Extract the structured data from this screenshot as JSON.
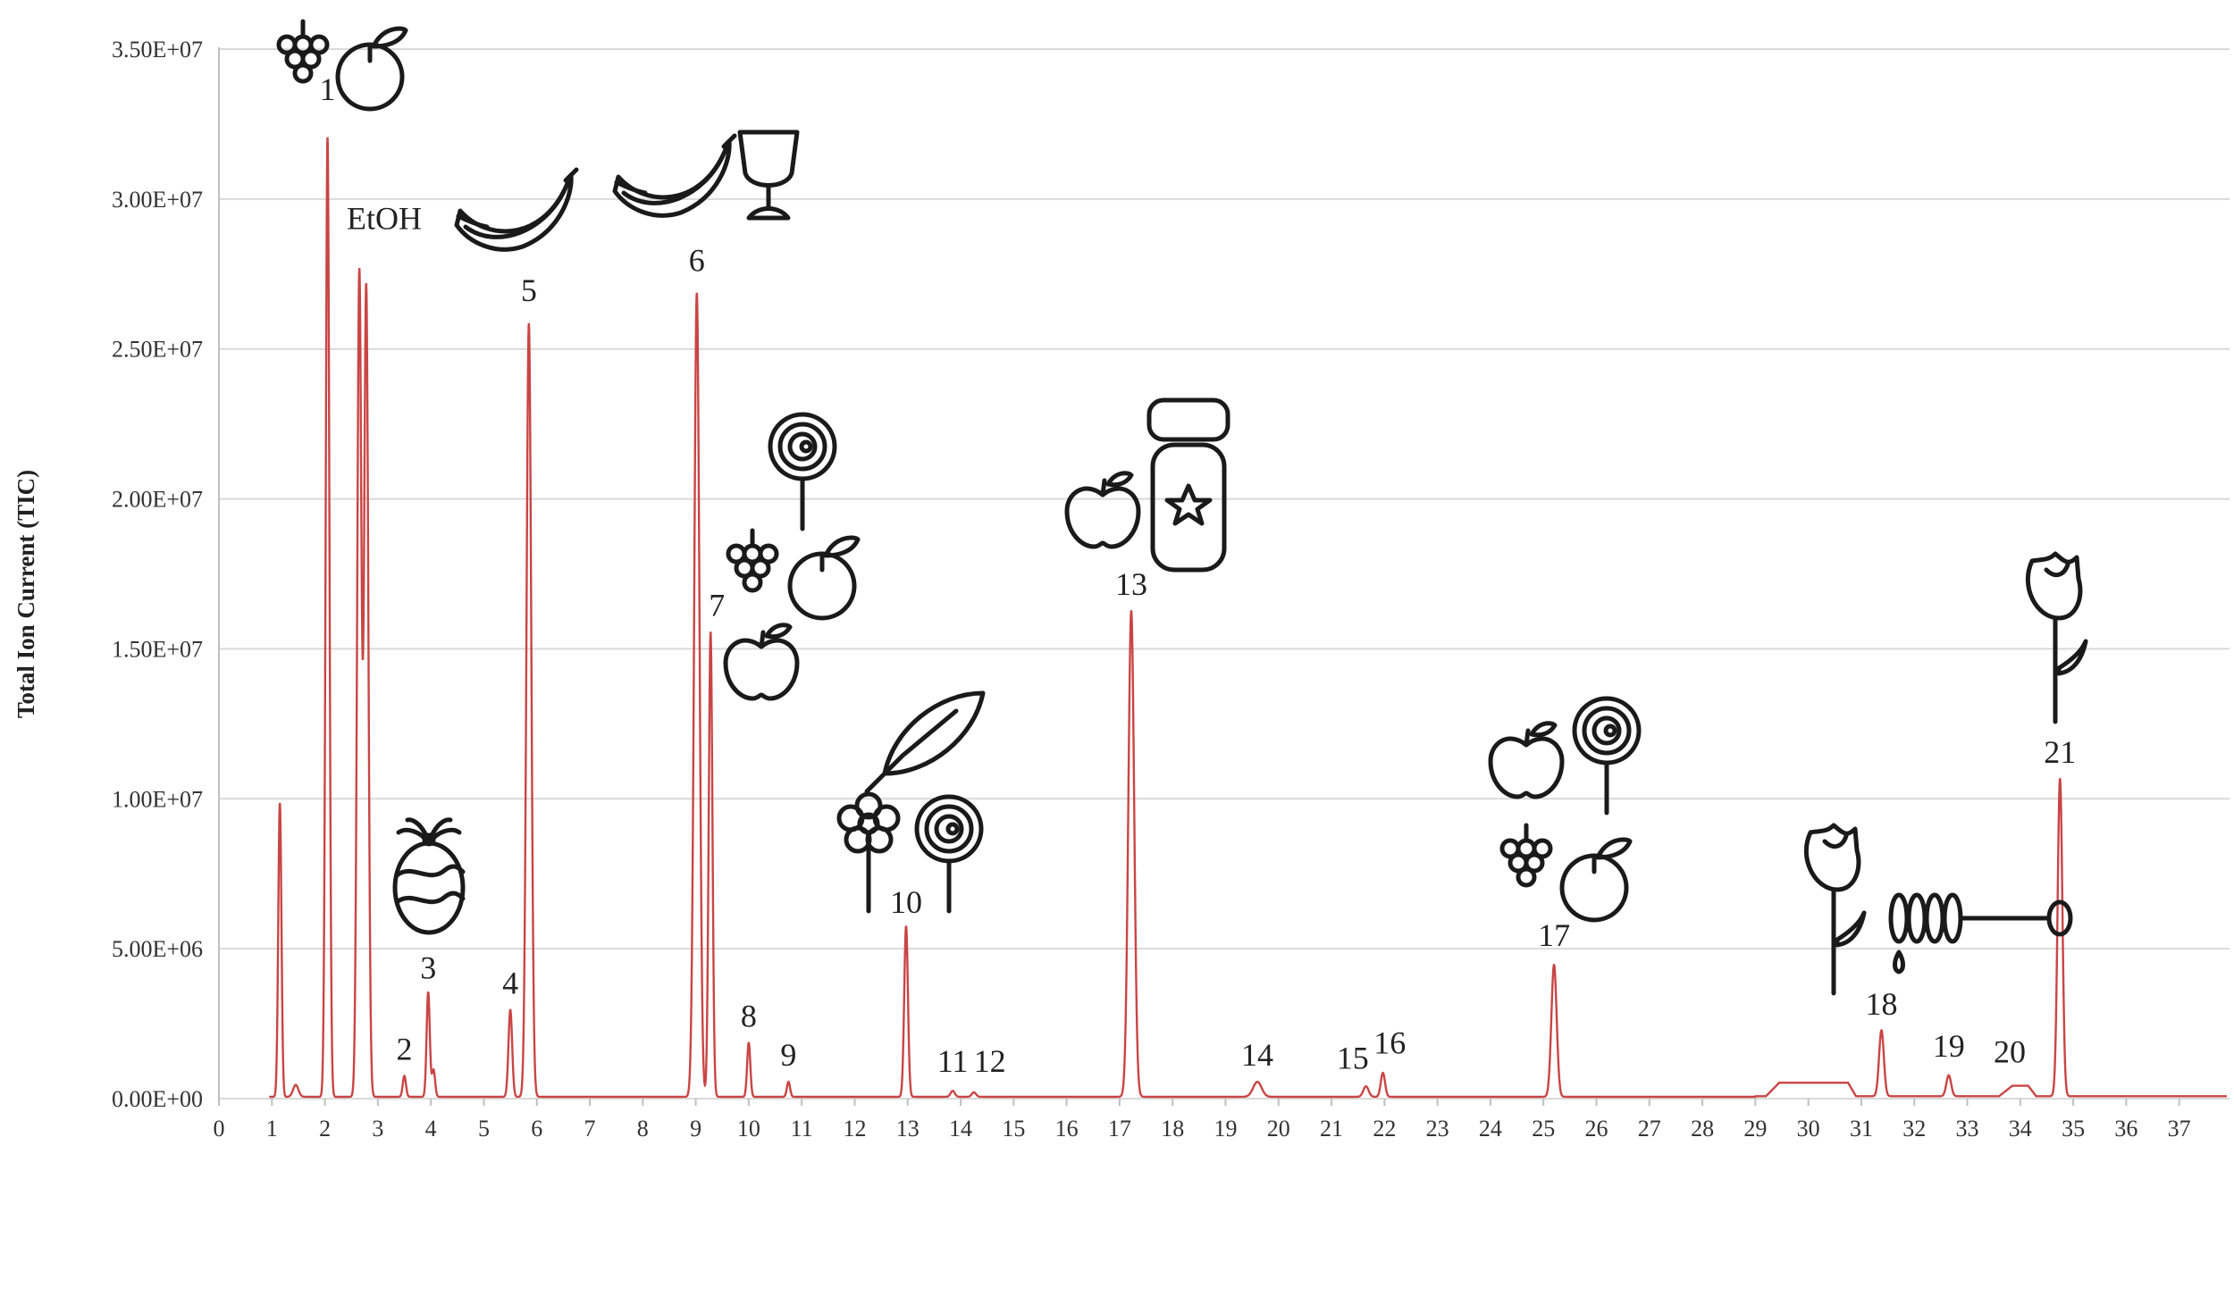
{
  "chart_data": {
    "type": "line",
    "title": "",
    "xlabel": "",
    "ylabel": "Total Ion Current (TIC)",
    "xlim": [
      0,
      38
    ],
    "ylim": [
      0,
      35000000
    ],
    "grid": true,
    "x_ticks": [
      "0",
      "1",
      "2",
      "3",
      "4",
      "5",
      "6",
      "7",
      "8",
      "9",
      "10",
      "11",
      "12",
      "13",
      "14",
      "15",
      "16",
      "17",
      "18",
      "19",
      "20",
      "21",
      "22",
      "23",
      "24",
      "25",
      "26",
      "27",
      "28",
      "29",
      "30",
      "31",
      "32",
      "33",
      "34",
      "35",
      "36",
      "37"
    ],
    "y_ticks": [
      {
        "value": 0,
        "label": "0.00E+00"
      },
      {
        "value": 5000000,
        "label": "5.00E+06"
      },
      {
        "value": 10000000,
        "label": "1.00E+07"
      },
      {
        "value": 15000000,
        "label": "1.50E+07"
      },
      {
        "value": 20000000,
        "label": "2.00E+07"
      },
      {
        "value": 25000000,
        "label": "2.50E+07"
      },
      {
        "value": 30000000,
        "label": "3.00E+07"
      },
      {
        "value": 35000000,
        "label": "3.50E+07"
      }
    ],
    "series_color": "#c94545",
    "peaks": [
      {
        "x": 1.15,
        "y": 9800000,
        "w": 0.03
      },
      {
        "x": 1.45,
        "y": 400000,
        "w": 0.05
      },
      {
        "x": 2.05,
        "y": 32000000,
        "w": 0.035
      },
      {
        "x": 2.65,
        "y": 27500000,
        "w": 0.04
      },
      {
        "x": 2.78,
        "y": 27000000,
        "w": 0.04
      },
      {
        "x": 3.5,
        "y": 700000,
        "w": 0.03
      },
      {
        "x": 3.95,
        "y": 3500000,
        "w": 0.03
      },
      {
        "x": 4.05,
        "y": 900000,
        "w": 0.03
      },
      {
        "x": 5.5,
        "y": 2900000,
        "w": 0.035
      },
      {
        "x": 5.85,
        "y": 25800000,
        "w": 0.045
      },
      {
        "x": 9.02,
        "y": 26800000,
        "w": 0.05
      },
      {
        "x": 9.28,
        "y": 15500000,
        "w": 0.035
      },
      {
        "x": 10.0,
        "y": 1800000,
        "w": 0.03
      },
      {
        "x": 10.75,
        "y": 500000,
        "w": 0.03
      },
      {
        "x": 12.97,
        "y": 5700000,
        "w": 0.035
      },
      {
        "x": 13.85,
        "y": 200000,
        "w": 0.04
      },
      {
        "x": 14.25,
        "y": 150000,
        "w": 0.04
      },
      {
        "x": 17.22,
        "y": 16200000,
        "w": 0.055
      },
      {
        "x": 19.6,
        "y": 500000,
        "w": 0.08
      },
      {
        "x": 21.65,
        "y": 350000,
        "w": 0.05
      },
      {
        "x": 21.97,
        "y": 800000,
        "w": 0.04
      },
      {
        "x": 25.2,
        "y": 4400000,
        "w": 0.05
      },
      {
        "x": 31.38,
        "y": 2200000,
        "w": 0.045
      },
      {
        "x": 32.65,
        "y": 700000,
        "w": 0.045
      },
      {
        "x": 34.75,
        "y": 10600000,
        "w": 0.045
      }
    ],
    "humps": [
      {
        "from": 29.2,
        "to": 30.9,
        "y": 450000
      },
      {
        "from": 33.6,
        "to": 34.3,
        "y": 350000
      }
    ],
    "annotations": [
      {
        "label": "1",
        "x": 2.05,
        "y": 33300000
      },
      {
        "label": "EtOH",
        "x": 3.12,
        "y": 29000000
      },
      {
        "label": "2",
        "x": 3.5,
        "y": 1300000
      },
      {
        "label": "3",
        "x": 3.95,
        "y": 4000000
      },
      {
        "label": "4",
        "x": 5.5,
        "y": 3500000
      },
      {
        "label": "5",
        "x": 5.85,
        "y": 26600000
      },
      {
        "label": "6",
        "x": 9.02,
        "y": 27600000
      },
      {
        "label": "7",
        "x": 9.4,
        "y": 16100000
      },
      {
        "label": "8",
        "x": 10.0,
        "y": 2400000
      },
      {
        "label": "9",
        "x": 10.75,
        "y": 1100000
      },
      {
        "label": "10",
        "x": 12.97,
        "y": 6200000
      },
      {
        "label": "11",
        "x": 13.85,
        "y": 900000
      },
      {
        "label": "12",
        "x": 14.55,
        "y": 900000
      },
      {
        "label": "13",
        "x": 17.22,
        "y": 16800000
      },
      {
        "label": "14",
        "x": 19.6,
        "y": 1100000
      },
      {
        "label": "15",
        "x": 21.4,
        "y": 1000000
      },
      {
        "label": "16",
        "x": 22.1,
        "y": 1500000
      },
      {
        "label": "17",
        "x": 25.2,
        "y": 5100000
      },
      {
        "label": "18",
        "x": 31.38,
        "y": 2800000
      },
      {
        "label": "19",
        "x": 32.65,
        "y": 1400000
      },
      {
        "label": "20",
        "x": 33.8,
        "y": 1200000
      },
      {
        "label": "21",
        "x": 34.75,
        "y": 11200000
      }
    ]
  },
  "aroma_icons": [
    {
      "peak": "1",
      "icons": [
        "grapes-icon",
        "orange-icon"
      ]
    },
    {
      "peak": "3",
      "icons": [
        "pineapple-icon"
      ]
    },
    {
      "peak": "5",
      "icons": [
        "banana-icon"
      ]
    },
    {
      "peak": "6",
      "icons": [
        "banana-icon",
        "wine-glass-icon"
      ]
    },
    {
      "peak": "7",
      "icons": [
        "lollipop-icon",
        "grapes-icon",
        "orange-icon",
        "apple-icon"
      ]
    },
    {
      "peak": "10",
      "icons": [
        "leaf-icon",
        "flower-icon",
        "lollipop-icon"
      ]
    },
    {
      "peak": "13",
      "icons": [
        "apple-icon",
        "candy-jar-icon"
      ]
    },
    {
      "peak": "17",
      "icons": [
        "apple-icon",
        "lollipop-icon",
        "grapes-icon",
        "orange-icon"
      ]
    },
    {
      "peak": "18",
      "icons": [
        "rose-icon",
        "honey-dipper-icon"
      ]
    },
    {
      "peak": "21",
      "icons": [
        "rose-icon"
      ]
    }
  ]
}
